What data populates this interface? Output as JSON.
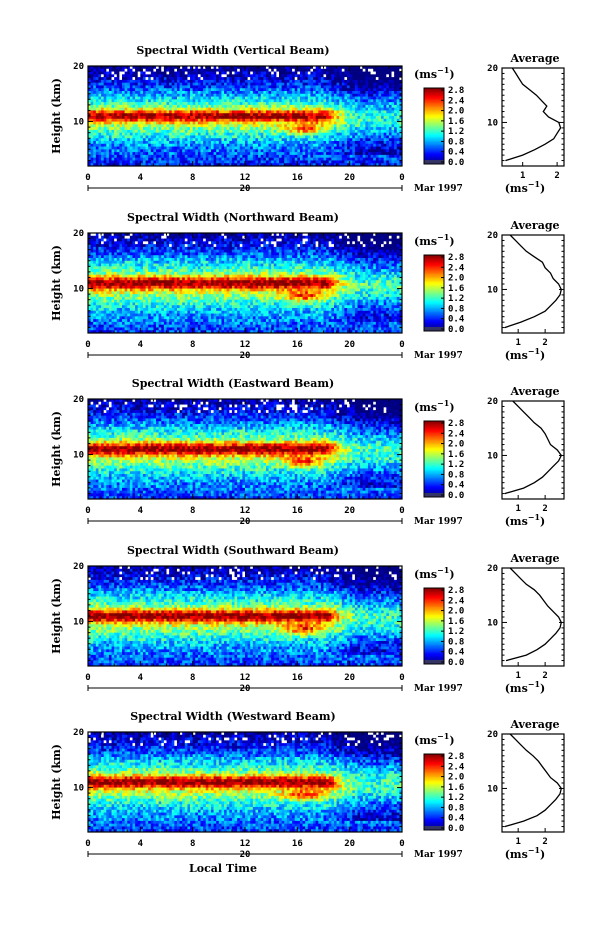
{
  "figure": {
    "xlabel": "Local Time",
    "ylabel": "Height (km)",
    "month_label": "Mar 1997",
    "day_label": "20",
    "unit": "(ms",
    "unit_exp": "−1",
    "unit_close": ")",
    "avg_title": "Average"
  },
  "chart_data": [
    {
      "type": "heatmap",
      "title": "Spectral Width (Vertical Beam)",
      "xlabel": "",
      "ylabel": "Height (km)",
      "x_ticks": [
        "0",
        "4",
        "8",
        "12",
        "16",
        "20",
        "0"
      ],
      "y_ticks": [
        "20",
        "10"
      ],
      "xlim": [
        0,
        24
      ],
      "ylim": [
        2,
        20
      ],
      "colorbar_ticks": [
        "2.8",
        "2.4",
        "2.0",
        "1.6",
        "1.2",
        "0.8",
        "0.4",
        "0.0"
      ],
      "average_profile": {
        "xlim": [
          0.4,
          2.2
        ],
        "x_ticks": [
          "1",
          "2"
        ],
        "y_ticks": [
          "20",
          "10"
        ],
        "height": [
          3,
          4,
          5,
          6,
          7,
          8,
          9,
          10,
          11,
          12,
          13,
          14,
          15,
          16,
          17,
          18,
          19,
          20
        ],
        "width": [
          0.5,
          1.0,
          1.35,
          1.65,
          1.9,
          2.0,
          2.1,
          2.05,
          1.75,
          1.6,
          1.7,
          1.55,
          1.4,
          1.2,
          1.0,
          0.9,
          0.8,
          0.7
        ]
      }
    },
    {
      "type": "heatmap",
      "title": "Spectral Width (Northward Beam)",
      "xlabel": "",
      "ylabel": "Height (km)",
      "x_ticks": [
        "0",
        "4",
        "8",
        "12",
        "16",
        "20",
        "0"
      ],
      "y_ticks": [
        "20",
        "10"
      ],
      "xlim": [
        0,
        24
      ],
      "ylim": [
        2,
        20
      ],
      "colorbar_ticks": [
        "2.8",
        "2.4",
        "2.0",
        "1.6",
        "1.2",
        "0.8",
        "0.4",
        "0.0"
      ],
      "average_profile": {
        "xlim": [
          0.4,
          2.7
        ],
        "x_ticks": [
          "1",
          "2"
        ],
        "y_ticks": [
          "20",
          "10"
        ],
        "height": [
          3,
          4,
          5,
          6,
          7,
          8,
          9,
          10,
          11,
          12,
          13,
          14,
          15,
          16,
          17,
          18,
          19,
          20
        ],
        "width": [
          0.5,
          1.1,
          1.6,
          2.0,
          2.2,
          2.4,
          2.55,
          2.6,
          2.5,
          2.3,
          2.2,
          2.0,
          1.9,
          1.6,
          1.3,
          1.1,
          0.9,
          0.7
        ]
      }
    },
    {
      "type": "heatmap",
      "title": "Spectral Width (Eastward Beam)",
      "xlabel": "",
      "ylabel": "Height (km)",
      "x_ticks": [
        "0",
        "4",
        "8",
        "12",
        "16",
        "20",
        "0"
      ],
      "y_ticks": [
        "20",
        "10"
      ],
      "xlim": [
        0,
        24
      ],
      "ylim": [
        2,
        20
      ],
      "colorbar_ticks": [
        "2.8",
        "2.4",
        "2.0",
        "1.6",
        "1.2",
        "0.8",
        "0.4",
        "0.0"
      ],
      "average_profile": {
        "xlim": [
          0.4,
          2.7
        ],
        "x_ticks": [
          "1",
          "2"
        ],
        "y_ticks": [
          "20",
          "10"
        ],
        "height": [
          3,
          4,
          5,
          6,
          7,
          8,
          9,
          10,
          11,
          12,
          13,
          14,
          15,
          16,
          17,
          18,
          19,
          20
        ],
        "width": [
          0.5,
          1.2,
          1.6,
          1.9,
          2.1,
          2.3,
          2.5,
          2.6,
          2.45,
          2.2,
          2.1,
          2.0,
          1.85,
          1.6,
          1.4,
          1.2,
          1.0,
          0.8
        ]
      }
    },
    {
      "type": "heatmap",
      "title": "Spectral Width (Southward Beam)",
      "xlabel": "",
      "ylabel": "Height (km)",
      "x_ticks": [
        "0",
        "4",
        "8",
        "12",
        "16",
        "20",
        "0"
      ],
      "y_ticks": [
        "20",
        "10"
      ],
      "xlim": [
        0,
        24
      ],
      "ylim": [
        2,
        20
      ],
      "colorbar_ticks": [
        "2.8",
        "2.4",
        "2.0",
        "1.6",
        "1.2",
        "0.8",
        "0.4",
        "0.0"
      ],
      "average_profile": {
        "xlim": [
          0.4,
          2.7
        ],
        "x_ticks": [
          "1",
          "2"
        ],
        "y_ticks": [
          "20",
          "10"
        ],
        "height": [
          3,
          4,
          5,
          6,
          7,
          8,
          9,
          10,
          11,
          12,
          13,
          14,
          15,
          16,
          17,
          18,
          19,
          20
        ],
        "width": [
          0.55,
          1.3,
          1.7,
          2.0,
          2.2,
          2.4,
          2.55,
          2.6,
          2.5,
          2.3,
          2.1,
          1.95,
          1.8,
          1.6,
          1.3,
          1.1,
          0.9,
          0.7
        ]
      }
    },
    {
      "type": "heatmap",
      "title": "Spectral Width (Westward Beam)",
      "xlabel": "Local Time",
      "ylabel": "Height (km)",
      "x_ticks": [
        "0",
        "4",
        "8",
        "12",
        "16",
        "20",
        "0"
      ],
      "y_ticks": [
        "20",
        "10"
      ],
      "xlim": [
        0,
        24
      ],
      "ylim": [
        2,
        20
      ],
      "colorbar_ticks": [
        "2.8",
        "2.4",
        "2.0",
        "1.6",
        "1.2",
        "0.8",
        "0.4",
        "0.0"
      ],
      "average_profile": {
        "xlim": [
          0.4,
          2.7
        ],
        "x_ticks": [
          "1",
          "2"
        ],
        "y_ticks": [
          "20",
          "10"
        ],
        "height": [
          3,
          4,
          5,
          6,
          7,
          8,
          9,
          10,
          11,
          12,
          13,
          14,
          15,
          16,
          17,
          18,
          19,
          20
        ],
        "width": [
          0.5,
          1.2,
          1.7,
          2.0,
          2.2,
          2.4,
          2.55,
          2.6,
          2.45,
          2.2,
          2.05,
          1.9,
          1.75,
          1.55,
          1.3,
          1.1,
          0.9,
          0.7
        ]
      }
    }
  ]
}
